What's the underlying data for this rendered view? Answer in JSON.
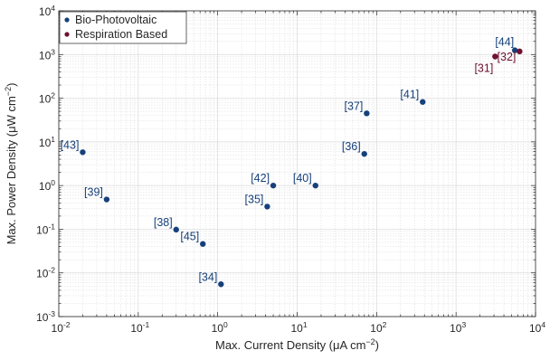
{
  "chart_data": {
    "type": "scatter",
    "xlabel": "Max. Current Density (μA cm⁻²)",
    "xlabel_main": "Max. Current Density (μA cm",
    "xlabel_sup": "−2",
    "xlabel_close": ")",
    "ylabel": "Max. Power Density (μW cm⁻²)",
    "ylabel_main": "Max. Power Density (μW cm",
    "ylabel_sup": "−2",
    "ylabel_close": ")",
    "x_scale": "log",
    "y_scale": "log",
    "xlim": [
      0.01,
      10000
    ],
    "ylim": [
      0.001,
      10000
    ],
    "x_ticks": [
      {
        "base": "10",
        "exp": "-2"
      },
      {
        "base": "10",
        "exp": "-1"
      },
      {
        "base": "10",
        "exp": "0"
      },
      {
        "base": "10",
        "exp": "1"
      },
      {
        "base": "10",
        "exp": "2"
      },
      {
        "base": "10",
        "exp": "3"
      },
      {
        "base": "10",
        "exp": "4"
      }
    ],
    "y_ticks": [
      {
        "base": "10",
        "exp": "-3"
      },
      {
        "base": "10",
        "exp": "-2"
      },
      {
        "base": "10",
        "exp": "-1"
      },
      {
        "base": "10",
        "exp": "0"
      },
      {
        "base": "10",
        "exp": "1"
      },
      {
        "base": "10",
        "exp": "2"
      },
      {
        "base": "10",
        "exp": "3"
      },
      {
        "base": "10",
        "exp": "4"
      }
    ],
    "grid": true,
    "minor_grid": true,
    "legend_position": "top-left",
    "series": [
      {
        "name": "Bio-Photovoltaic",
        "color": "#16407a",
        "points": [
          {
            "x": 0.02,
            "y": 5.8,
            "label": "[43]"
          },
          {
            "x": 0.04,
            "y": 0.48,
            "label": "[39]"
          },
          {
            "x": 0.3,
            "y": 0.098,
            "label": "[38]"
          },
          {
            "x": 0.65,
            "y": 0.046,
            "label": "[45]"
          },
          {
            "x": 1.1,
            "y": 0.0055,
            "label": "[34]"
          },
          {
            "x": 4.2,
            "y": 0.33,
            "label": "[35]"
          },
          {
            "x": 5.0,
            "y": 1.0,
            "label": "[42]"
          },
          {
            "x": 17,
            "y": 1.0,
            "label": "[40]"
          },
          {
            "x": 70,
            "y": 5.3,
            "label": "[36]"
          },
          {
            "x": 75,
            "y": 45,
            "label": "[37]"
          },
          {
            "x": 380,
            "y": 82,
            "label": "[41]"
          },
          {
            "x": 5500,
            "y": 1250,
            "label": "[44]"
          }
        ]
      },
      {
        "name": "Respiration Based",
        "color": "#6d1233",
        "points": [
          {
            "x": 3100,
            "y": 900,
            "label": "[31]"
          },
          {
            "x": 6300,
            "y": 1180,
            "label": "[32]"
          }
        ]
      }
    ]
  }
}
